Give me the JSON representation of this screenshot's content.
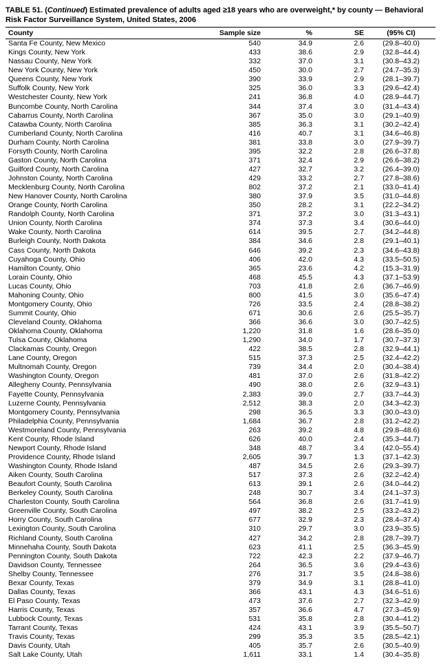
{
  "title_html": "TABLE 51. (<i>Continued</i>) Estimated prevalence of adults aged ≥18 years who are overweight,* by county — Behavioral Risk Factor Surveillance System, United States, 2006",
  "columns": {
    "county": "County",
    "sample": "Sample size",
    "pct": "%",
    "se": "SE",
    "ci": "(95% CI)"
  },
  "rows": [
    {
      "county": "Santa Fe County, New Mexico",
      "sample": "540",
      "pct": "34.9",
      "se": "2.6",
      "ci": "(29.8–40.0)"
    },
    {
      "county": "Kings County, New York",
      "sample": "433",
      "pct": "38.6",
      "se": "2.9",
      "ci": "(32.8–44.4)"
    },
    {
      "county": "Nassau County, New York",
      "sample": "332",
      "pct": "37.0",
      "se": "3.1",
      "ci": "(30.8–43.2)"
    },
    {
      "county": "New York County, New York",
      "sample": "450",
      "pct": "30.0",
      "se": "2.7",
      "ci": "(24.7–35.3)"
    },
    {
      "county": "Queens County, New York",
      "sample": "390",
      "pct": "33.9",
      "se": "2.9",
      "ci": "(28.1–39.7)"
    },
    {
      "county": "Suffolk County, New York",
      "sample": "325",
      "pct": "36.0",
      "se": "3.3",
      "ci": "(29.6–42.4)"
    },
    {
      "county": "Westchester County, New York",
      "sample": "241",
      "pct": "36.8",
      "se": "4.0",
      "ci": "(28.9–44.7)"
    },
    {
      "county": "Buncombe County, North Carolina",
      "sample": "344",
      "pct": "37.4",
      "se": "3.0",
      "ci": "(31.4–43.4)"
    },
    {
      "county": "Cabarrus County, North Carolina",
      "sample": "367",
      "pct": "35.0",
      "se": "3.0",
      "ci": "(29.1–40.9)"
    },
    {
      "county": "Catawba County, North Carolina",
      "sample": "385",
      "pct": "36.3",
      "se": "3.1",
      "ci": "(30.2–42.4)"
    },
    {
      "county": "Cumberland County, North Carolina",
      "sample": "416",
      "pct": "40.7",
      "se": "3.1",
      "ci": "(34.6–46.8)"
    },
    {
      "county": "Durham County, North Carolina",
      "sample": "381",
      "pct": "33.8",
      "se": "3.0",
      "ci": "(27.9–39.7)"
    },
    {
      "county": "Forsyth County, North Carolina",
      "sample": "395",
      "pct": "32.2",
      "se": "2.8",
      "ci": "(26.6–37.8)"
    },
    {
      "county": "Gaston County, North Carolina",
      "sample": "371",
      "pct": "32.4",
      "se": "2.9",
      "ci": "(26.6–38.2)"
    },
    {
      "county": "Guilford County, North Carolina",
      "sample": "427",
      "pct": "32.7",
      "se": "3.2",
      "ci": "(26.4–39.0)"
    },
    {
      "county": "Johnston County, North Carolina",
      "sample": "429",
      "pct": "33.2",
      "se": "2.7",
      "ci": "(27.8–38.6)"
    },
    {
      "county": "Mecklenburg County, North Carolina",
      "sample": "802",
      "pct": "37.2",
      "se": "2.1",
      "ci": "(33.0–41.4)"
    },
    {
      "county": "New Hanover County, North Carolina",
      "sample": "380",
      "pct": "37.9",
      "se": "3.5",
      "ci": "(31.0–44.8)"
    },
    {
      "county": "Orange County, North Carolina",
      "sample": "350",
      "pct": "28.2",
      "se": "3.1",
      "ci": "(22.2–34.2)"
    },
    {
      "county": "Randolph County, North Carolina",
      "sample": "371",
      "pct": "37.2",
      "se": "3.0",
      "ci": "(31.3–43.1)"
    },
    {
      "county": "Union County, North Carolina",
      "sample": "374",
      "pct": "37.3",
      "se": "3.4",
      "ci": "(30.6–44.0)"
    },
    {
      "county": "Wake County, North Carolina",
      "sample": "614",
      "pct": "39.5",
      "se": "2.7",
      "ci": "(34.2–44.8)"
    },
    {
      "county": "Burleigh County, North Dakota",
      "sample": "384",
      "pct": "34.6",
      "se": "2.8",
      "ci": "(29.1–40.1)"
    },
    {
      "county": "Cass County, North Dakota",
      "sample": "646",
      "pct": "39.2",
      "se": "2.3",
      "ci": "(34.6–43.8)"
    },
    {
      "county": "Cuyahoga County, Ohio",
      "sample": "406",
      "pct": "42.0",
      "se": "4.3",
      "ci": "(33.5–50.5)"
    },
    {
      "county": "Hamilton County, Ohio",
      "sample": "365",
      "pct": "23.6",
      "se": "4.2",
      "ci": "(15.3–31.9)"
    },
    {
      "county": "Lorain County, Ohio",
      "sample": "468",
      "pct": "45.5",
      "se": "4.3",
      "ci": "(37.1–53.9)"
    },
    {
      "county": "Lucas County, Ohio",
      "sample": "703",
      "pct": "41.8",
      "se": "2.6",
      "ci": "(36.7–46.9)"
    },
    {
      "county": "Mahoning County, Ohio",
      "sample": "800",
      "pct": "41.5",
      "se": "3.0",
      "ci": "(35.6–47.4)"
    },
    {
      "county": "Montgomery County, Ohio",
      "sample": "726",
      "pct": "33.5",
      "se": "2.4",
      "ci": "(28.8–38.2)"
    },
    {
      "county": "Summit County, Ohio",
      "sample": "671",
      "pct": "30.6",
      "se": "2.6",
      "ci": "(25.5–35.7)"
    },
    {
      "county": "Cleveland County, Oklahoma",
      "sample": "366",
      "pct": "36.6",
      "se": "3.0",
      "ci": "(30.7–42.5)"
    },
    {
      "county": "Oklahoma County, Oklahoma",
      "sample": "1,220",
      "pct": "31.8",
      "se": "1.6",
      "ci": "(28.6–35.0)"
    },
    {
      "county": "Tulsa County, Oklahoma",
      "sample": "1,290",
      "pct": "34.0",
      "se": "1.7",
      "ci": "(30.7–37.3)"
    },
    {
      "county": "Clackamas County, Oregon",
      "sample": "422",
      "pct": "38.5",
      "se": "2.8",
      "ci": "(32.9–44.1)"
    },
    {
      "county": "Lane County, Oregon",
      "sample": "515",
      "pct": "37.3",
      "se": "2.5",
      "ci": "(32.4–42.2)"
    },
    {
      "county": "Multnomah County, Oregon",
      "sample": "739",
      "pct": "34.4",
      "se": "2.0",
      "ci": "(30.4–38.4)"
    },
    {
      "county": "Washington County, Oregon",
      "sample": "481",
      "pct": "37.0",
      "se": "2.6",
      "ci": "(31.8–42.2)"
    },
    {
      "county": "Allegheny County, Pennsylvania",
      "sample": "490",
      "pct": "38.0",
      "se": "2.6",
      "ci": "(32.9–43.1)"
    },
    {
      "county": "Fayette County, Pennsylvania",
      "sample": "2,383",
      "pct": "39.0",
      "se": "2.7",
      "ci": "(33.7–44.3)"
    },
    {
      "county": "Luzerne County, Pennsylvania",
      "sample": "2,512",
      "pct": "38.3",
      "se": "2.0",
      "ci": "(34.3–42.3)"
    },
    {
      "county": "Montgomery County, Pennsylvania",
      "sample": "298",
      "pct": "36.5",
      "se": "3.3",
      "ci": "(30.0–43.0)"
    },
    {
      "county": "Philadelphia County, Pennsylvania",
      "sample": "1,684",
      "pct": "36.7",
      "se": "2.8",
      "ci": "(31.2–42.2)"
    },
    {
      "county": "Westmoreland County, Pennsylvania",
      "sample": "263",
      "pct": "39.2",
      "se": "4.8",
      "ci": "(29.8–48.6)"
    },
    {
      "county": "Kent County, Rhode Island",
      "sample": "626",
      "pct": "40.0",
      "se": "2.4",
      "ci": "(35.3–44.7)"
    },
    {
      "county": "Newport County, Rhode Island",
      "sample": "348",
      "pct": "48.7",
      "se": "3.4",
      "ci": "(42.0–55.4)"
    },
    {
      "county": "Providence County, Rhode Island",
      "sample": "2,605",
      "pct": "39.7",
      "se": "1.3",
      "ci": "(37.1–42.3)"
    },
    {
      "county": "Washington County, Rhode Island",
      "sample": "487",
      "pct": "34.5",
      "se": "2.6",
      "ci": "(29.3–39.7)"
    },
    {
      "county": "Aiken County, South Carolina",
      "sample": "517",
      "pct": "37.3",
      "se": "2.6",
      "ci": "(32.2–42.4)"
    },
    {
      "county": "Beaufort County, South Carolina",
      "sample": "613",
      "pct": "39.1",
      "se": "2.6",
      "ci": "(34.0–44.2)"
    },
    {
      "county": "Berkeley County, South Carolina",
      "sample": "248",
      "pct": "30.7",
      "se": "3.4",
      "ci": "(24.1–37.3)"
    },
    {
      "county": "Charleston County, South Carolina",
      "sample": "564",
      "pct": "36.8",
      "se": "2.6",
      "ci": "(31.7–41.9)"
    },
    {
      "county": "Greenville County, South Carolina",
      "sample": "497",
      "pct": "38.2",
      "se": "2.5",
      "ci": "(33.2–43.2)"
    },
    {
      "county": "Horry County, South Carolina",
      "sample": "677",
      "pct": "32.9",
      "se": "2.3",
      "ci": "(28.4–37.4)"
    },
    {
      "county": "Lexington County, South Carolina",
      "sample": "310",
      "pct": "29.7",
      "se": "3.0",
      "ci": "(23.9–35.5)"
    },
    {
      "county": "Richland County, South Carolina",
      "sample": "427",
      "pct": "34.2",
      "se": "2.8",
      "ci": "(28.7–39.7)"
    },
    {
      "county": "Minnehaha County, South Dakota",
      "sample": "623",
      "pct": "41.1",
      "se": "2.5",
      "ci": "(36.3–45.9)"
    },
    {
      "county": "Pennington County, South Dakota",
      "sample": "722",
      "pct": "42.3",
      "se": "2.2",
      "ci": "(37.9–46.7)"
    },
    {
      "county": "Davidson County, Tennessee",
      "sample": "264",
      "pct": "36.5",
      "se": "3.6",
      "ci": "(29.4–43.6)"
    },
    {
      "county": "Shelby County, Tennessee",
      "sample": "276",
      "pct": "31.7",
      "se": "3.5",
      "ci": "(24.8–38.6)"
    },
    {
      "county": "Bexar County, Texas",
      "sample": "379",
      "pct": "34.9",
      "se": "3.1",
      "ci": "(28.8–41.0)"
    },
    {
      "county": "Dallas County, Texas",
      "sample": "366",
      "pct": "43.1",
      "se": "4.3",
      "ci": "(34.6–51.6)"
    },
    {
      "county": "El Paso County, Texas",
      "sample": "473",
      "pct": "37.6",
      "se": "2.7",
      "ci": "(32.3–42.9)"
    },
    {
      "county": "Harris County, Texas",
      "sample": "357",
      "pct": "36.6",
      "se": "4.7",
      "ci": "(27.3–45.9)"
    },
    {
      "county": "Lubbock County, Texas",
      "sample": "531",
      "pct": "35.8",
      "se": "2.8",
      "ci": "(30.4–41.2)"
    },
    {
      "county": "Tarrant County, Texas",
      "sample": "424",
      "pct": "43.1",
      "se": "3.9",
      "ci": "(35.5–50.7)"
    },
    {
      "county": "Travis County, Texas",
      "sample": "299",
      "pct": "35.3",
      "se": "3.5",
      "ci": "(28.5–42.1)"
    },
    {
      "county": "Davis County, Utah",
      "sample": "405",
      "pct": "35.7",
      "se": "2.6",
      "ci": "(30.5–40.9)"
    },
    {
      "county": "Salt Lake County, Utah",
      "sample": "1,611",
      "pct": "33.1",
      "se": "1.4",
      "ci": "(30.4–35.8)"
    }
  ]
}
